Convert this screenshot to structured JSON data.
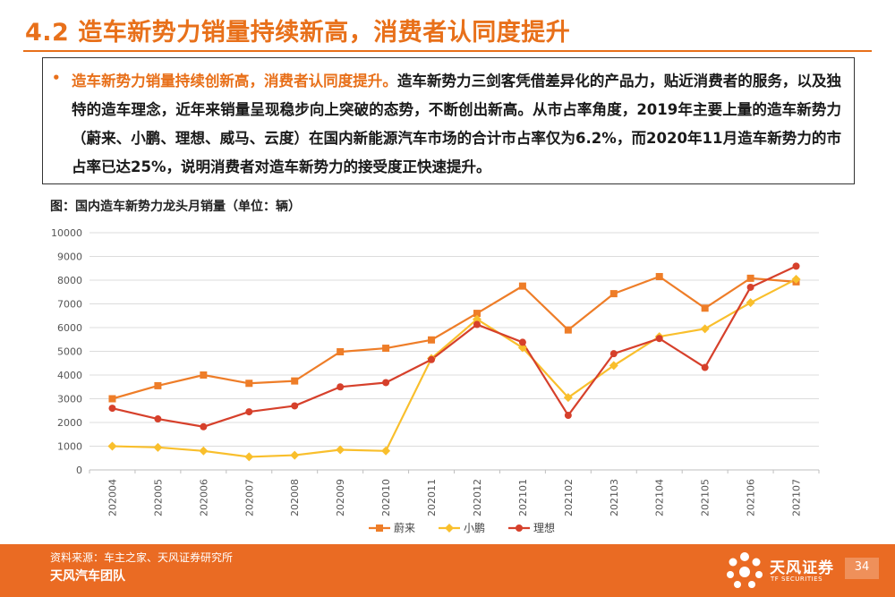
{
  "header": {
    "title": "4.2 造车新势力销量持续新高，消费者认同度提升"
  },
  "summary": {
    "bullet": "•",
    "highlight": "造车新势力销量持续创新高，消费者认同度提升。",
    "body": "造车新势力三剑客凭借差异化的产品力，贴近消费者的服务，以及独特的造车理念，近年来销量呈现稳步向上突破的态势，不断创出新高。从市占率角度，2019年主要上量的造车新势力（蔚来、小鹏、理想、威马、云度）在国内新能源汽车市场的合计市占率仅为6.2%，而2020年11月造车新势力的市占率已达25%，说明消费者对造车新势力的接受度正快速提升。"
  },
  "caption": "图：国内造车新势力龙头月销量（单位：辆）",
  "chart_data": {
    "type": "line",
    "title": "",
    "xlabel": "",
    "ylabel": "",
    "categories": [
      "202004",
      "202005",
      "202006",
      "202007",
      "202008",
      "202009",
      "202010",
      "202011",
      "202012",
      "202101",
      "202102",
      "202103",
      "202104",
      "202105",
      "202106",
      "202107"
    ],
    "ylim": [
      0,
      10000
    ],
    "yticks": [
      0,
      1000,
      2000,
      3000,
      4000,
      5000,
      6000,
      7000,
      8000,
      9000,
      10000
    ],
    "grid": true,
    "legend_position": "bottom",
    "series": [
      {
        "name": "蔚来",
        "color": "#ee7d28",
        "marker": "square",
        "values": [
          3000,
          3550,
          4000,
          3650,
          3750,
          4980,
          5130,
          5480,
          6600,
          7750,
          5900,
          7430,
          8150,
          6820,
          8080,
          7930
        ]
      },
      {
        "name": "小鹏",
        "color": "#f9bf2c",
        "marker": "diamond",
        "values": [
          1000,
          950,
          800,
          550,
          620,
          850,
          800,
          4700,
          6350,
          5150,
          3050,
          4400,
          5620,
          5950,
          7050,
          8040
        ]
      },
      {
        "name": "理想",
        "color": "#d6402b",
        "marker": "circle",
        "values": [
          2600,
          2150,
          1820,
          2450,
          2700,
          3500,
          3680,
          4650,
          6130,
          5380,
          2300,
          4900,
          5540,
          4320,
          7700,
          8590
        ]
      }
    ]
  },
  "footer": {
    "source": "资料来源：车主之家、天风证券研究所",
    "team": "天风汽车团队",
    "brand": "天风证券",
    "brand_en": "TF SECURITIES",
    "page": "34"
  },
  "colors": {
    "accent": "#e8701a",
    "footer_bg": "#ea6b23"
  }
}
